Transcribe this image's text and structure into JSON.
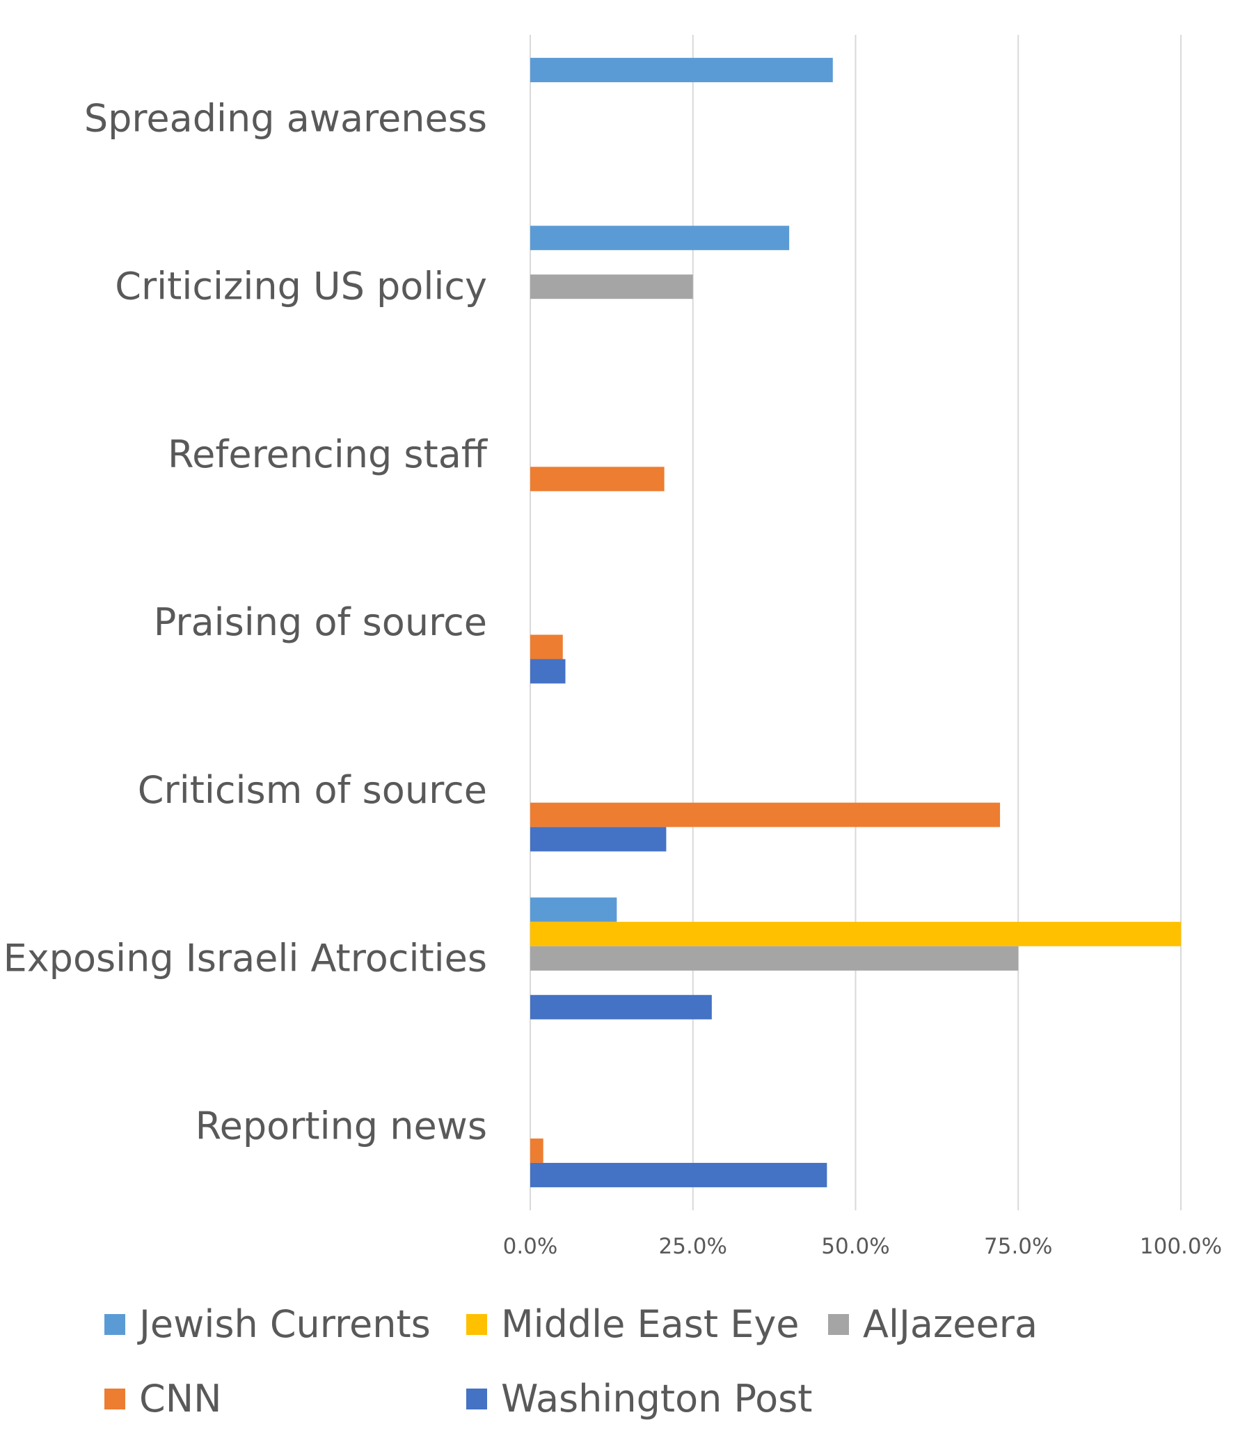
{
  "chart_data": {
    "type": "bar",
    "orientation": "horizontal",
    "categories": [
      "Spreading awareness",
      "Criticizing US policy",
      "Referencing staff",
      "Praising of source",
      "Criticism of source",
      "Exposing Israeli Atrocities",
      "Reporting news"
    ],
    "series": [
      {
        "name": "Jewish Currents",
        "color": "#5B9BD5",
        "values": [
          46.5,
          39.8,
          0,
          0,
          0,
          13.3,
          0
        ]
      },
      {
        "name": "Middle East Eye",
        "color": "#FFC000",
        "values": [
          0,
          0,
          0,
          0,
          0,
          100,
          0
        ]
      },
      {
        "name": "AlJazeera",
        "color": "#A5A5A5",
        "values": [
          0,
          25,
          0,
          0,
          0,
          75,
          0
        ]
      },
      {
        "name": "CNN",
        "color": "#ED7D31",
        "values": [
          0,
          0,
          20.6,
          5,
          72.2,
          0,
          2
        ]
      },
      {
        "name": "Washington Post",
        "color": "#4472C4",
        "values": [
          0,
          0,
          0,
          5.4,
          20.9,
          27.9,
          45.6
        ]
      }
    ],
    "xlim": [
      0,
      100
    ],
    "xticks": [
      "0.0%",
      "25.0%",
      "50.0%",
      "75.0%",
      "100.0%"
    ],
    "grid": "vertical",
    "legend_position": "bottom",
    "title": "",
    "xlabel": "",
    "ylabel": ""
  }
}
